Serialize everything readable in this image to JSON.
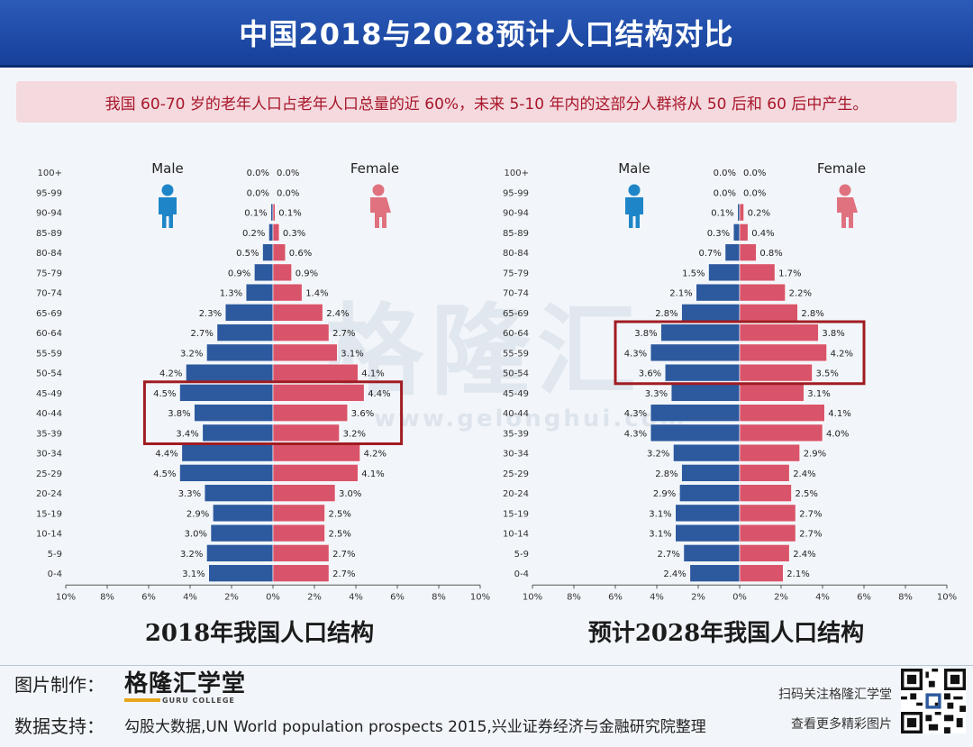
{
  "header": {
    "title": "中国2018与2028预计人口结构对比"
  },
  "banner": {
    "text": "我国 60-70 岁的老年人口占老年人口总量的近 60%，未来 5-10 年内的这部分人群将从 50 后和 60 后中产生。"
  },
  "watermark": {
    "cn": "格隆汇",
    "url": "www.gelonghui.com"
  },
  "chart_data": [
    {
      "type": "bar",
      "orientation": "population-pyramid",
      "title": "2018年我国人口结构",
      "male_label": "Male",
      "female_label": "Female",
      "age_groups": [
        "100+",
        "95-99",
        "90-94",
        "85-89",
        "80-84",
        "75-79",
        "70-74",
        "65-69",
        "60-64",
        "55-59",
        "50-54",
        "45-49",
        "40-44",
        "35-39",
        "30-34",
        "25-29",
        "20-24",
        "15-19",
        "10-14",
        "5-9",
        "0-4"
      ],
      "x_ticks": [
        "10%",
        "8%",
        "6%",
        "4%",
        "2%",
        "0%",
        "2%",
        "4%",
        "6%",
        "8%",
        "10%"
      ],
      "xlim": [
        -10,
        10
      ],
      "series": [
        {
          "name": "Male",
          "values": [
            0.0,
            0.0,
            0.1,
            0.2,
            0.5,
            0.9,
            1.3,
            2.3,
            2.7,
            3.2,
            4.2,
            4.5,
            3.8,
            3.4,
            4.4,
            4.5,
            3.3,
            2.9,
            3.0,
            3.2,
            3.1
          ]
        },
        {
          "name": "Female",
          "values": [
            0.0,
            0.0,
            0.1,
            0.3,
            0.6,
            0.9,
            1.4,
            2.4,
            2.7,
            3.1,
            4.1,
            4.4,
            3.6,
            3.2,
            4.2,
            4.1,
            3.0,
            2.5,
            2.5,
            2.7,
            2.7
          ]
        }
      ],
      "highlight": {
        "from": "45-49",
        "to": "35-39",
        "color": "#a01c22"
      },
      "colors": {
        "male": "#2d5a9e",
        "female": "#d9546a"
      }
    },
    {
      "type": "bar",
      "orientation": "population-pyramid",
      "title": "预计2028年我国人口结构",
      "male_label": "Male",
      "female_label": "Female",
      "age_groups": [
        "100+",
        "95-99",
        "90-94",
        "85-89",
        "80-84",
        "75-79",
        "70-74",
        "65-69",
        "60-64",
        "55-59",
        "50-54",
        "45-49",
        "40-44",
        "35-39",
        "30-34",
        "25-29",
        "20-24",
        "15-19",
        "10-14",
        "5-9",
        "0-4"
      ],
      "x_ticks": [
        "10%",
        "8%",
        "6%",
        "4%",
        "2%",
        "0%",
        "2%",
        "4%",
        "6%",
        "8%",
        "10%"
      ],
      "xlim": [
        -10,
        10
      ],
      "series": [
        {
          "name": "Male",
          "values": [
            0.0,
            0.0,
            0.1,
            0.3,
            0.7,
            1.5,
            2.1,
            2.8,
            3.8,
            4.3,
            3.6,
            3.3,
            4.3,
            4.3,
            3.2,
            2.8,
            2.9,
            3.1,
            3.1,
            2.7,
            2.4
          ]
        },
        {
          "name": "Female",
          "values": [
            0.0,
            0.0,
            0.2,
            0.4,
            0.8,
            1.7,
            2.2,
            2.8,
            3.8,
            4.2,
            3.5,
            3.1,
            4.1,
            4.0,
            2.9,
            2.4,
            2.5,
            2.7,
            2.7,
            2.4,
            2.1
          ]
        }
      ],
      "highlight": {
        "from": "60-64",
        "to": "50-54",
        "color": "#a01c22"
      },
      "colors": {
        "male": "#2d5a9e",
        "female": "#d9546a"
      }
    }
  ],
  "footer": {
    "credit_label": "图片制作：",
    "logo_text": "格隆汇学堂",
    "logo_sub": "GURU COLLEGE",
    "source_label": "数据支持：",
    "source_text": "勾股大数据,UN World population prospects 2015,兴业证券经济与金融研究院整理",
    "qr_line1": "扫码关注格隆汇学堂",
    "qr_line2": "查看更多精彩图片"
  }
}
